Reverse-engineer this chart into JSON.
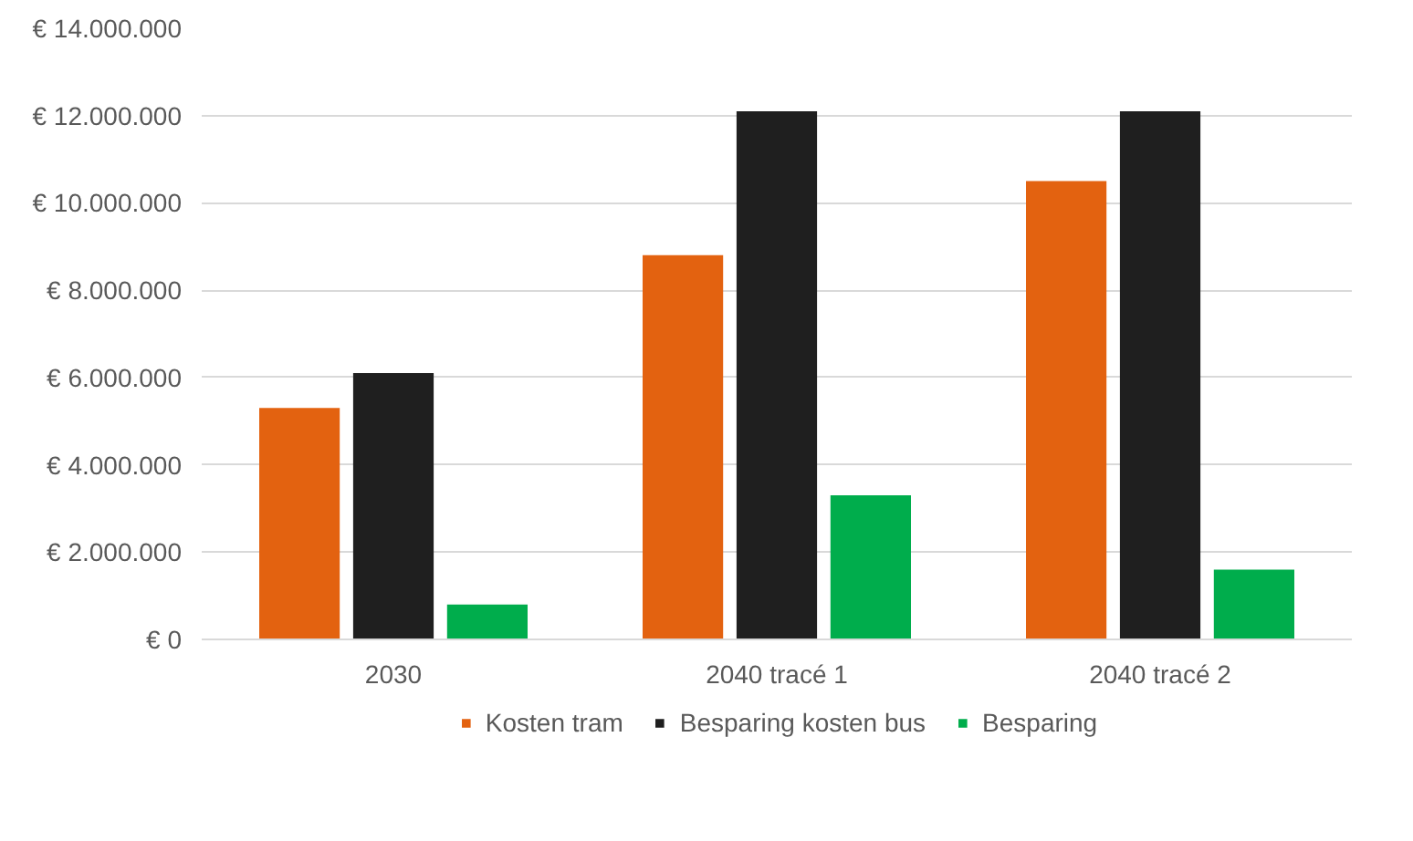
{
  "chart_data": {
    "type": "bar",
    "categories": [
      "2030",
      "2040 tracé 1",
      "2040 tracé 2"
    ],
    "series": [
      {
        "name": "Kosten tram",
        "color": "#e36210",
        "values": [
          5300000,
          8800000,
          10500000
        ]
      },
      {
        "name": "Besparing kosten bus",
        "color": "#1f1f1f",
        "values": [
          6100000,
          12100000,
          12100000
        ]
      },
      {
        "name": "Besparing",
        "color": "#00ad4c",
        "values": [
          800000,
          3300000,
          1600000
        ]
      }
    ],
    "ylim": [
      0,
      14000000
    ],
    "yticks": [
      {
        "value": 0,
        "label": "€ 0"
      },
      {
        "value": 2000000,
        "label": "€ 2.000.000"
      },
      {
        "value": 4000000,
        "label": "€ 4.000.000"
      },
      {
        "value": 6000000,
        "label": "€ 6.000.000"
      },
      {
        "value": 8000000,
        "label": "€ 8.000.000"
      },
      {
        "value": 10000000,
        "label": "€ 10.000.000"
      },
      {
        "value": 12000000,
        "label": "€ 12.000.000"
      },
      {
        "value": 14000000,
        "label": "€ 14.000.000"
      }
    ],
    "grid": "y",
    "legend": "bottom"
  }
}
